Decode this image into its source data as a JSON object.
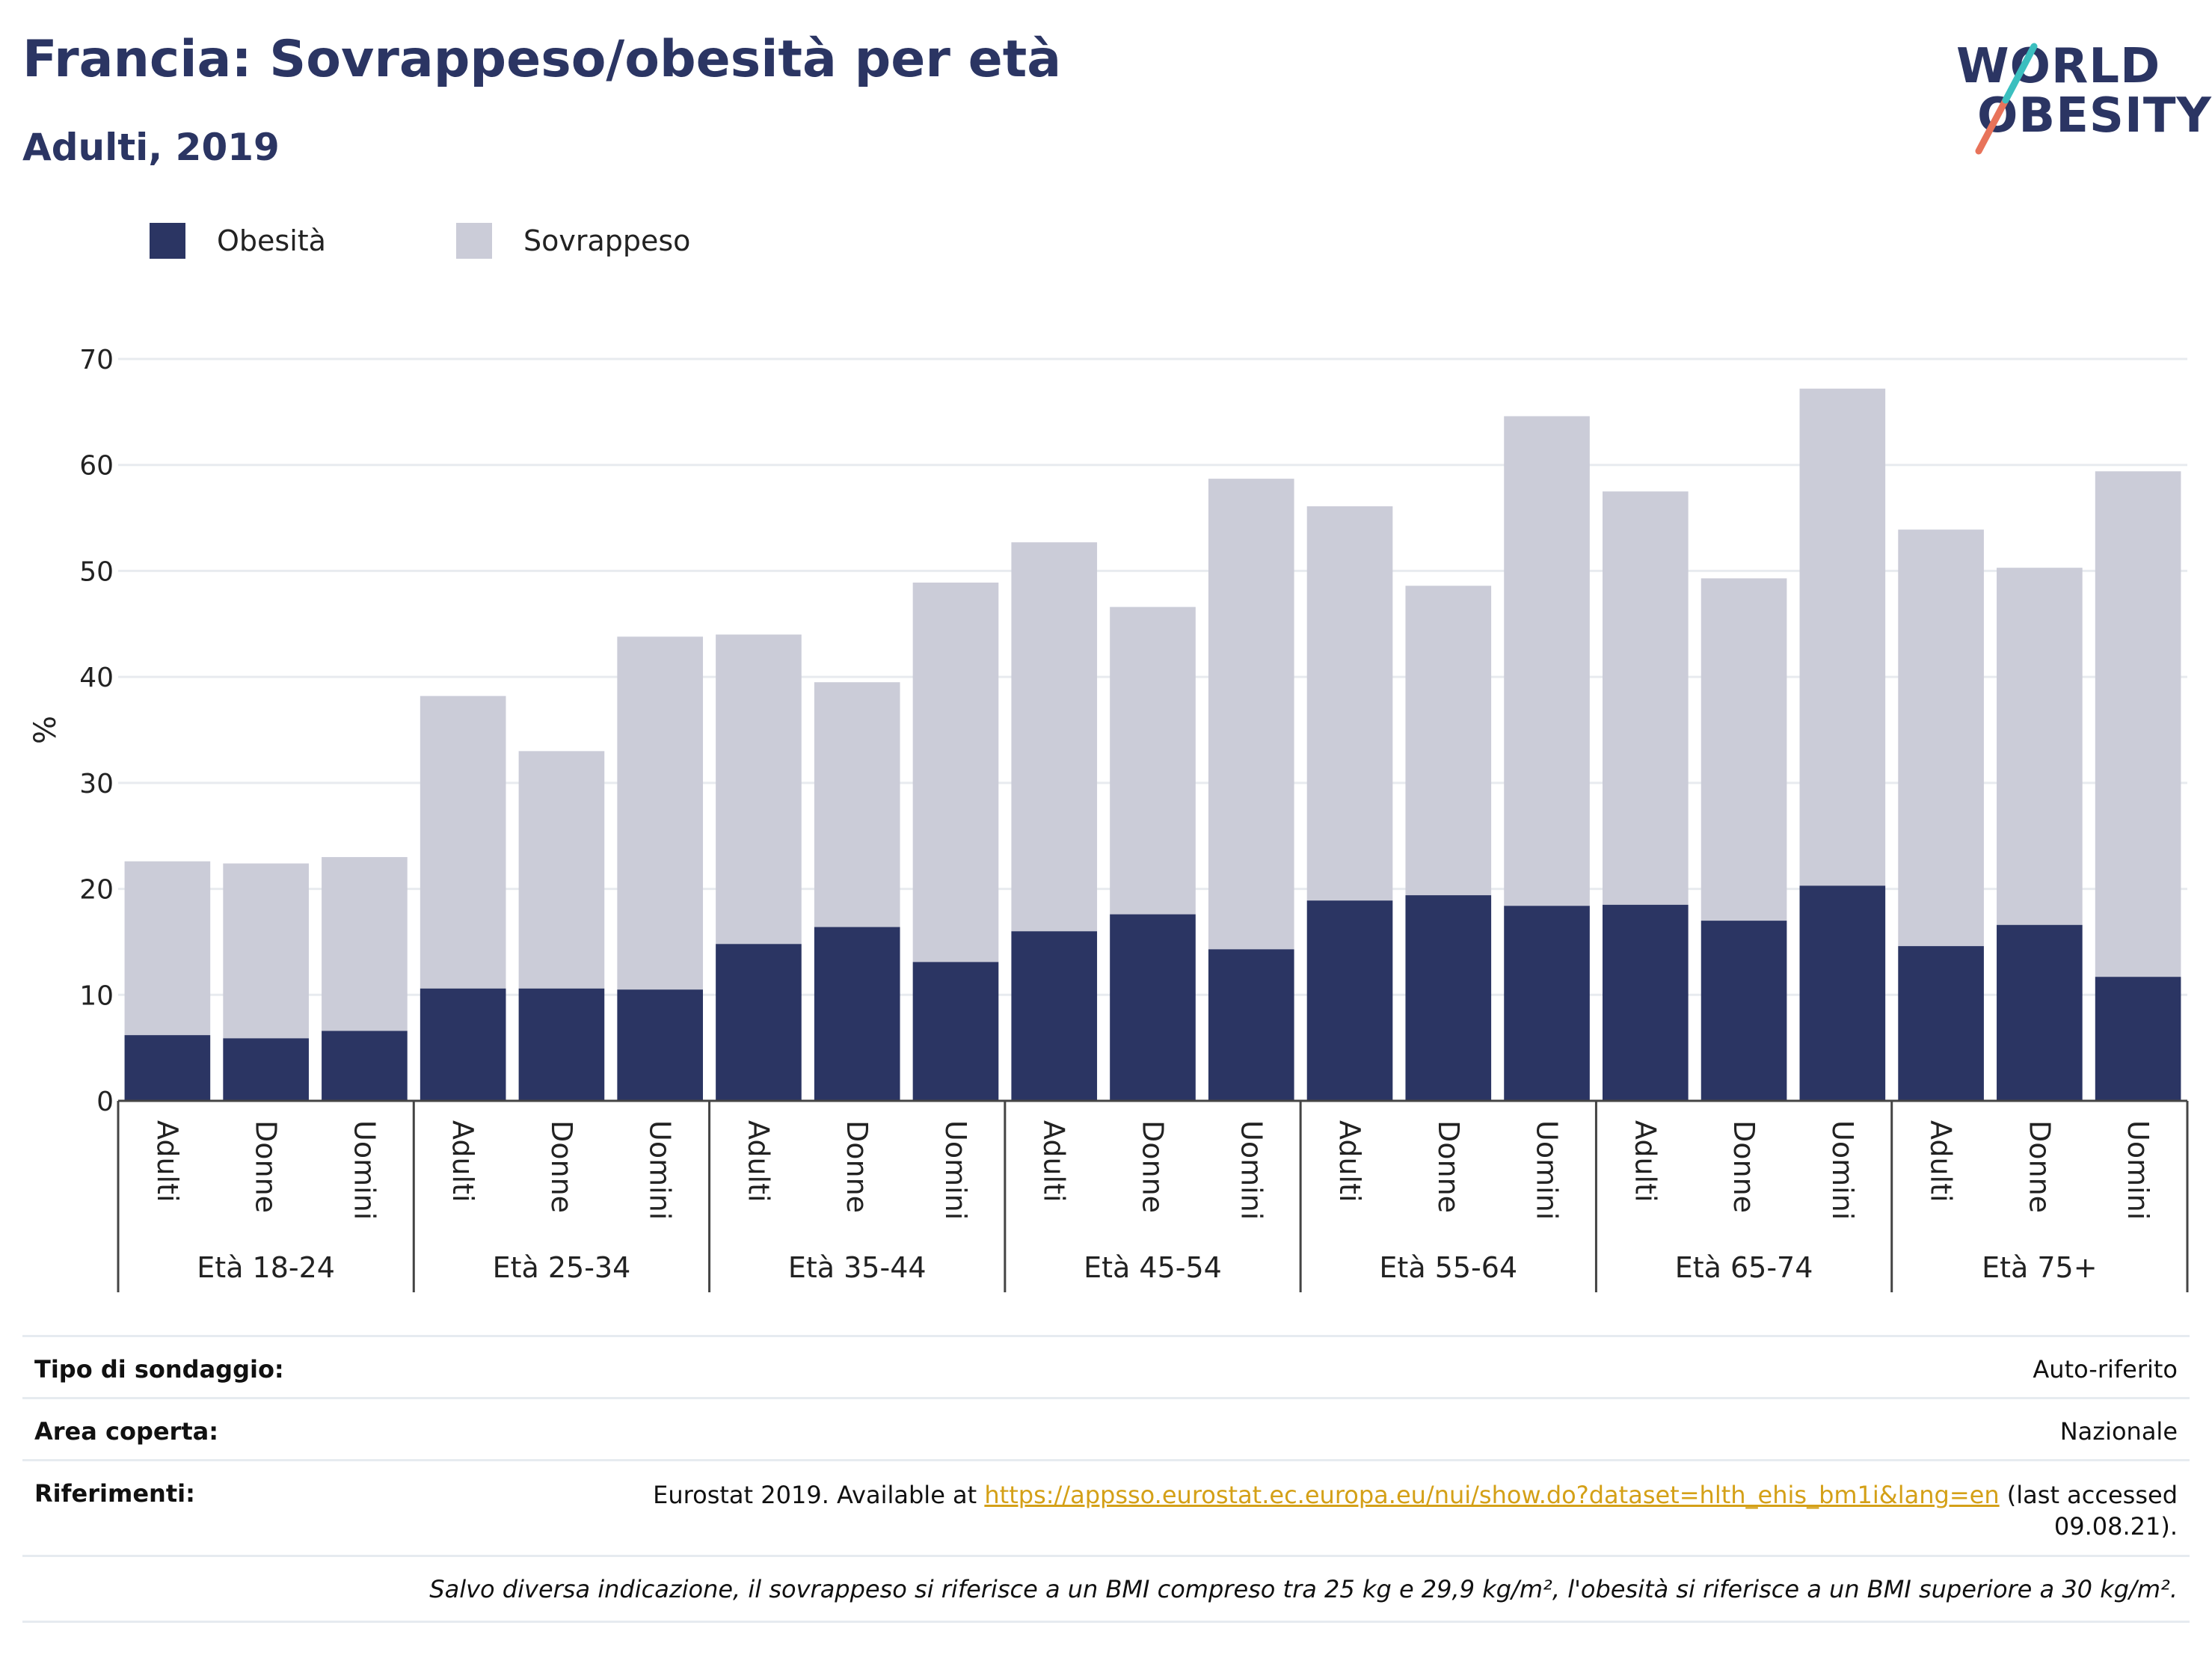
{
  "header": {
    "title": "Francia: Sovrappeso/obesità per età",
    "subtitle": "Adulti, 2019"
  },
  "logo": {
    "line1": "WORLD",
    "line2": "OBESITY",
    "accent_teal": "#3bbfbf",
    "accent_coral": "#e8735a"
  },
  "legend": [
    {
      "label": "Obesità",
      "color": "#2b3563"
    },
    {
      "label": "Sovrappeso",
      "color": "#cbccd8"
    }
  ],
  "chart_data": {
    "type": "bar",
    "stacked": true,
    "ylabel": "%",
    "ylim": [
      0,
      70
    ],
    "yticks": [
      0,
      10,
      20,
      30,
      40,
      50,
      60,
      70
    ],
    "grid": true,
    "legend_position": "top-left",
    "groups": [
      "Età 18-24",
      "Età 25-34",
      "Età 35-44",
      "Età 45-54",
      "Età 55-64",
      "Età 65-74",
      "Età 75+"
    ],
    "subcategories": [
      "Adulti",
      "Donne",
      "Uomini"
    ],
    "series": [
      {
        "name": "Obesità",
        "color": "#2b3563",
        "values": [
          6.2,
          5.9,
          6.6,
          10.6,
          10.6,
          10.5,
          14.8,
          16.4,
          13.1,
          16.0,
          17.6,
          14.3,
          18.9,
          19.4,
          18.4,
          18.5,
          17.0,
          20.3,
          14.6,
          16.6,
          11.7
        ]
      },
      {
        "name": "Sovrappeso",
        "color": "#cbccd8",
        "values": [
          16.4,
          16.5,
          16.4,
          27.6,
          22.4,
          33.3,
          29.2,
          23.1,
          35.8,
          36.7,
          29.0,
          44.4,
          37.2,
          29.2,
          46.2,
          39.0,
          32.3,
          46.9,
          39.3,
          33.7,
          47.7
        ]
      }
    ]
  },
  "meta": {
    "rows": [
      {
        "label": "Tipo di sondaggio:",
        "value": "Auto-riferito"
      },
      {
        "label": "Area coperta:",
        "value": "Nazionale"
      }
    ],
    "references": {
      "label": "Riferimenti:",
      "prefix": "Eurostat 2019. Available at ",
      "link": "https://appsso.eurostat.ec.europa.eu/nui/show.do?dataset=hlth_ehis_bm1i&lang=en",
      "suffix_line1": " (last accessed",
      "suffix_line2": "09.08.21)."
    },
    "note": "Salvo diversa indicazione, il sovrappeso si riferisce a un BMI compreso tra 25 kg e 29,9 kg/m², l'obesità si riferisce a un BMI superiore a 30 kg/m²."
  }
}
